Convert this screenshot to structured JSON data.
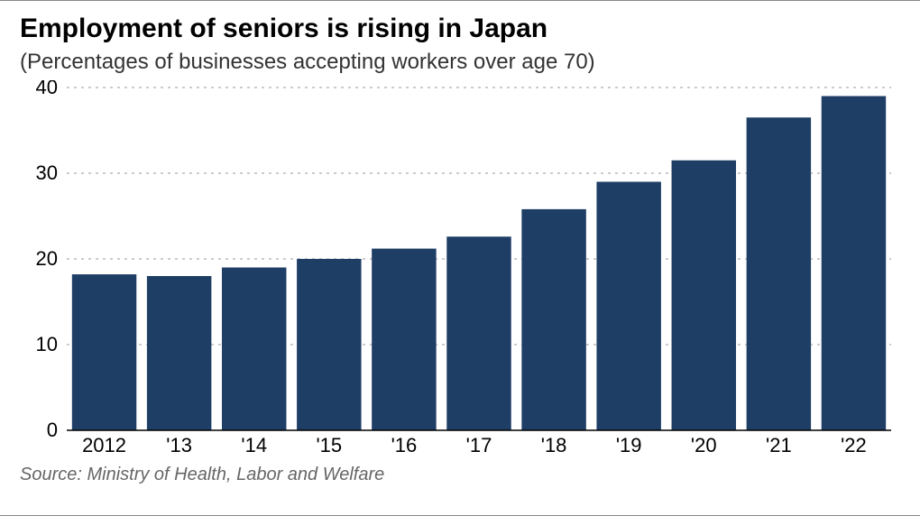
{
  "chart": {
    "type": "bar",
    "title": "Employment of seniors is rising in Japan",
    "subtitle": "(Percentages of businesses accepting workers over age 70)",
    "source": "Source: Ministry of Health, Labor and Welfare",
    "categories": [
      "2012",
      "'13",
      "'14",
      "'15",
      "'16",
      "'17",
      "'18",
      "'19",
      "'20",
      "'21",
      "'22"
    ],
    "values": [
      18.2,
      18.0,
      19.0,
      20.0,
      21.2,
      22.6,
      25.8,
      29.0,
      31.5,
      36.5,
      39.0
    ],
    "bar_color": "#1f3e66",
    "background_color": "#ffffff",
    "grid_color": "#bbbbbb",
    "axis_color": "#000000",
    "ylim": [
      0,
      40
    ],
    "ytick_step": 10,
    "title_fontsize": 30,
    "title_fontweight": 700,
    "subtitle_fontsize": 24,
    "label_fontsize": 22,
    "source_fontsize": 20,
    "bar_width_ratio": 0.86,
    "grid_dash": "3,5",
    "text_color": "#000000",
    "source_color": "#666666"
  }
}
